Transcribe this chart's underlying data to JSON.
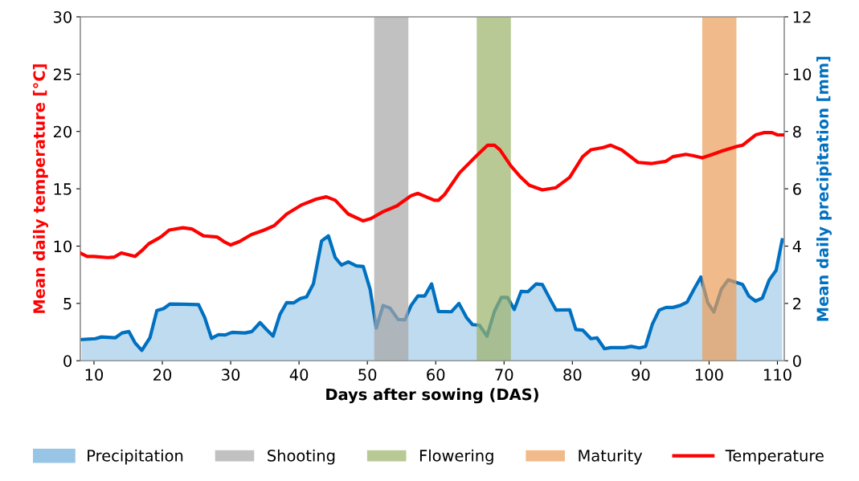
{
  "chart_data": {
    "type": "line",
    "xlabel": "Days after sowing (DAS)",
    "ylabel": "Mean daily temperature [°C]",
    "y2label": "Mean daily precipitation [mm]",
    "xlim": [
      8,
      111
    ],
    "xticks": [
      10,
      20,
      30,
      40,
      50,
      60,
      70,
      80,
      90,
      100,
      110
    ],
    "ylim": [
      0,
      30
    ],
    "yticks": [
      0,
      5,
      10,
      15,
      20,
      25,
      30
    ],
    "y2lim": [
      0,
      12
    ],
    "y2ticks": [
      0,
      2,
      4,
      6,
      8,
      10,
      12
    ],
    "grid": false,
    "legend": "bottom",
    "series": [
      {
        "name": "Precipitation",
        "type": "area",
        "axis": "y2",
        "color": "#0070c0",
        "x": [
          8.2,
          10.2,
          11.1,
          13.1,
          14.1,
          15.1,
          16,
          17,
          18.2,
          19.2,
          20.2,
          21.1,
          23.1,
          25.3,
          26.2,
          27.2,
          28.2,
          29.2,
          30.2,
          32.1,
          33.1,
          34.3,
          35.2,
          36.2,
          37.2,
          38.2,
          39.2,
          40.2,
          41.1,
          42.1,
          43.3,
          44.3,
          45.3,
          46.2,
          47.2,
          48.4,
          49.4,
          50.4,
          51.3,
          52.3,
          53.3,
          54.5,
          55.5,
          56.4,
          57.4,
          58.4,
          59.4,
          60.4,
          62.3,
          63.4,
          64.5,
          65.4,
          66.4,
          67.5,
          68.6,
          69.6,
          70.5,
          71.5,
          72.5,
          73.5,
          74.7,
          75.6,
          76.6,
          77.6,
          79.6,
          80.5,
          81.5,
          82.7,
          83.6,
          84.7,
          85.6,
          87.6,
          88.6,
          89.8,
          90.7,
          91.7,
          92.7,
          93.7,
          94.7,
          95.8,
          96.8,
          97.8,
          98.8,
          99.8,
          100.7,
          101.8,
          102.8,
          103.9,
          104.9,
          105.8,
          106.8,
          107.8,
          108.8,
          109.8,
          110.7
        ],
        "values": [
          0.74,
          0.77,
          0.83,
          0.8,
          0.97,
          1.02,
          0.63,
          0.36,
          0.81,
          1.75,
          1.82,
          1.98,
          1.97,
          1.96,
          1.51,
          0.78,
          0.91,
          0.9,
          0.99,
          0.97,
          1.02,
          1.33,
          1.1,
          0.86,
          1.61,
          2.03,
          2.02,
          2.17,
          2.23,
          2.68,
          4.18,
          4.36,
          3.6,
          3.34,
          3.45,
          3.31,
          3.29,
          2.5,
          1.14,
          1.93,
          1.84,
          1.44,
          1.43,
          1.93,
          2.26,
          2.26,
          2.68,
          1.72,
          1.71,
          2.0,
          1.51,
          1.26,
          1.24,
          0.86,
          1.73,
          2.21,
          2.21,
          1.79,
          2.42,
          2.41,
          2.68,
          2.66,
          2.21,
          1.77,
          1.78,
          1.09,
          1.07,
          0.77,
          0.8,
          0.42,
          0.46,
          0.46,
          0.5,
          0.45,
          0.5,
          1.28,
          1.77,
          1.86,
          1.86,
          1.93,
          2.05,
          2.5,
          2.92,
          2.03,
          1.7,
          2.5,
          2.82,
          2.74,
          2.66,
          2.26,
          2.08,
          2.19,
          2.82,
          3.15,
          4.22
        ]
      },
      {
        "name": "Temperature",
        "color": "#ff0000",
        "x": [
          8,
          9,
          10,
          12,
          13,
          14,
          16,
          17,
          18,
          19.2,
          20,
          21,
          23,
          24.3,
          26,
          28,
          29,
          30,
          31.3,
          33,
          34.9,
          36.4,
          38.2,
          40.4,
          42.5,
          44,
          45.3,
          47.2,
          49.4,
          50.5,
          52.3,
          54.3,
          56.4,
          57.4,
          59.8,
          60.4,
          61.3,
          63.5,
          66,
          67.6,
          68.6,
          69.4,
          71,
          72.3,
          73.7,
          75.6,
          77.6,
          79.6,
          81.5,
          82.7,
          84.5,
          85.6,
          87.2,
          89.6,
          91.5,
          93.7,
          94.7,
          96.6,
          97.6,
          99,
          100.5,
          101.9,
          104.1,
          104.9,
          106.8,
          108,
          109.2,
          110,
          110.9
        ],
        "values": [
          9.4,
          9.1,
          9.1,
          9.0,
          9.05,
          9.4,
          9.1,
          9.6,
          10.2,
          10.6,
          10.9,
          11.4,
          11.6,
          11.5,
          10.9,
          10.8,
          10.4,
          10.1,
          10.4,
          11.0,
          11.4,
          11.8,
          12.8,
          13.6,
          14.1,
          14.3,
          14.0,
          12.8,
          12.2,
          12.4,
          13.0,
          13.5,
          14.4,
          14.6,
          14.0,
          14.0,
          14.5,
          16.4,
          17.9,
          18.8,
          18.8,
          18.4,
          17.0,
          16.1,
          15.3,
          14.9,
          15.1,
          16.0,
          17.8,
          18.4,
          18.6,
          18.8,
          18.4,
          17.3,
          17.2,
          17.4,
          17.8,
          18.0,
          17.9,
          17.7,
          18.0,
          18.3,
          18.7,
          18.8,
          19.7,
          19.9,
          19.9,
          19.7,
          19.7
        ]
      }
    ],
    "bands": [
      {
        "axis": "x",
        "from": 51,
        "to": 56,
        "label": "Shooting",
        "color": "#a6a6a6"
      },
      {
        "axis": "x",
        "from": 66,
        "to": 71,
        "label": "Flowering",
        "color": "#9bb26a"
      },
      {
        "axis": "x",
        "from": 99,
        "to": 104,
        "label": "Maturity",
        "color": "#eb9d58"
      }
    ]
  }
}
